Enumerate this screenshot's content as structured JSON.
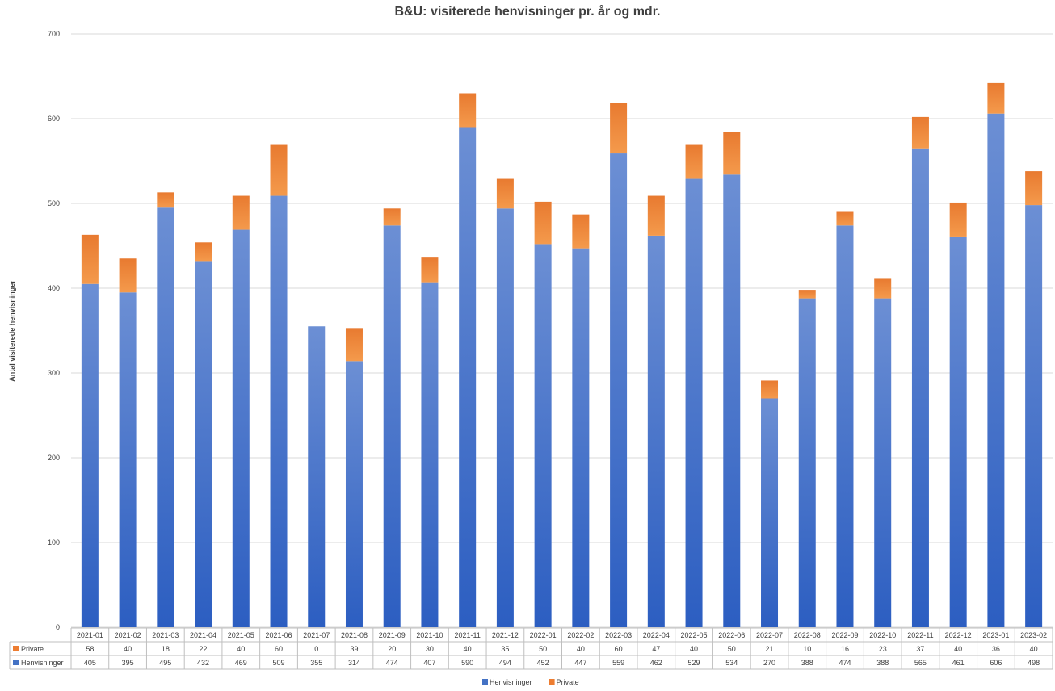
{
  "chart_data": {
    "type": "bar",
    "stacked": true,
    "title": "B&U: visiterede henvisninger pr. år og mdr.",
    "ylabel": "Antal visiterede henvisninger",
    "xlabel": "",
    "ylim": [
      0,
      700
    ],
    "yticks": [
      0,
      100,
      200,
      300,
      400,
      500,
      600,
      700
    ],
    "grid": true,
    "legend_position": "bottom",
    "data_table": true,
    "categories": [
      "2021-01",
      "2021-02",
      "2021-03",
      "2021-04",
      "2021-05",
      "2021-06",
      "2021-07",
      "2021-08",
      "2021-09",
      "2021-10",
      "2021-11",
      "2021-12",
      "2022-01",
      "2022-02",
      "2022-03",
      "2022-04",
      "2022-05",
      "2022-06",
      "2022-07",
      "2022-08",
      "2022-09",
      "2022-10",
      "2022-11",
      "2022-12",
      "2023-01",
      "2023-02"
    ],
    "series": [
      {
        "name": "Henvisninger",
        "color": "#4472C4",
        "values": [
          405,
          395,
          495,
          432,
          469,
          509,
          355,
          314,
          474,
          407,
          590,
          494,
          452,
          447,
          559,
          462,
          529,
          534,
          270,
          388,
          474,
          388,
          565,
          461,
          606,
          498
        ]
      },
      {
        "name": "Private",
        "color": "#ED7D31",
        "values": [
          58,
          40,
          18,
          22,
          40,
          60,
          0,
          39,
          20,
          30,
          40,
          35,
          50,
          40,
          60,
          47,
          40,
          50,
          21,
          10,
          16,
          23,
          37,
          40,
          36,
          40
        ]
      }
    ]
  }
}
